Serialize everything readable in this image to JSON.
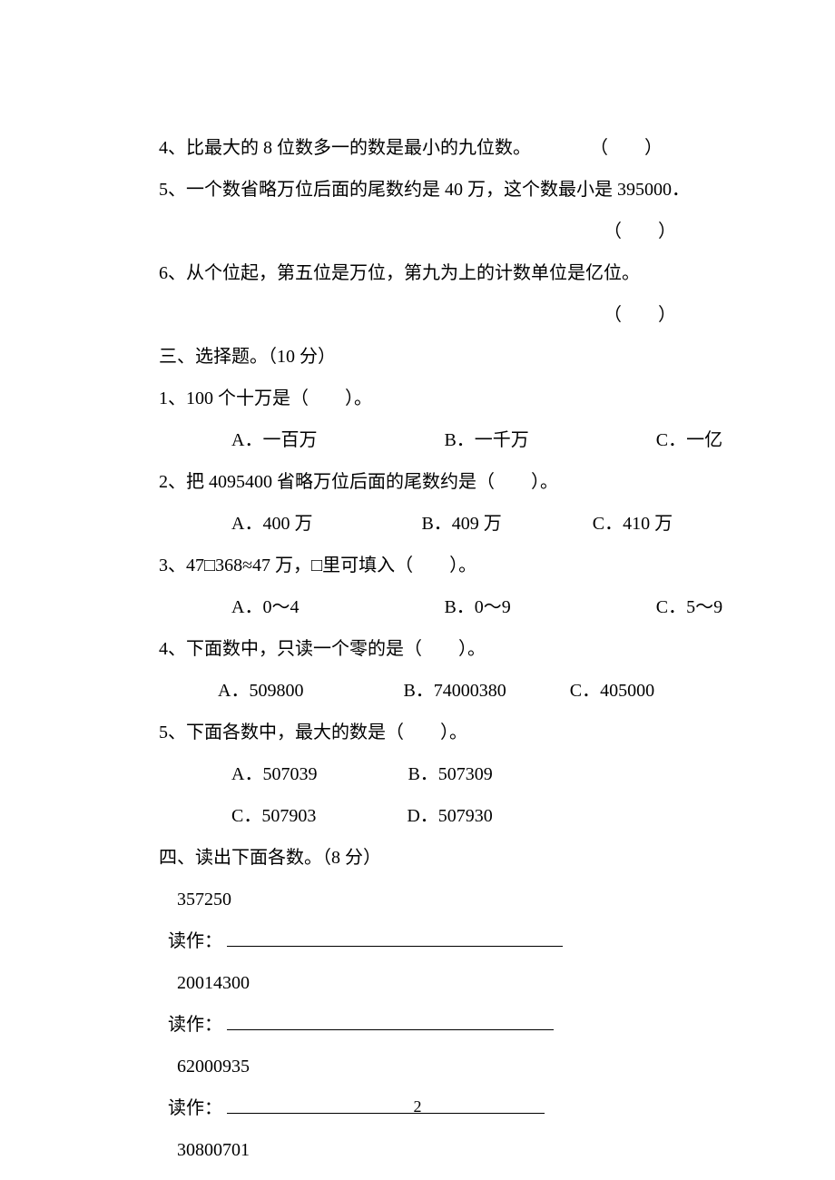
{
  "judge": {
    "q4": "4、比最大的 8 位数多一的数是最小的九位数。",
    "q4_paren": "（　　）",
    "q5": "5、一个数省略万位后面的尾数约是 40 万，这个数最小是 395000．",
    "q5_paren": "（　　）",
    "q6": "6、从个位起，第五位是万位，第九为上的计数单位是亿位。",
    "q6_paren": "（　　）"
  },
  "section3": {
    "title": "三、选择题。（10 分）",
    "q1": {
      "stem": "1、100 个十万是（　　）。",
      "A": "A．一百万",
      "B": "B．一千万",
      "C": "C．一亿"
    },
    "q2": {
      "stem": "2、把 4095400 省略万位后面的尾数约是（　　）。",
      "A": "A．400 万",
      "B": "B．409 万",
      "C": "C．410 万"
    },
    "q3": {
      "stem": "3、47□368≈47 万，□里可填入（　　）。",
      "A": "A．0～4",
      "B": "B．0～9",
      "C": "C．5～9"
    },
    "q4": {
      "stem": "4、下面数中，只读一个零的是（　　）。",
      "A": "A．509800",
      "B": "B．74000380",
      "C": "C．405000"
    },
    "q5": {
      "stem": "5、下面各数中，最大的数是（　　）。",
      "A": "A．507039",
      "B": "B．507309",
      "C": "C．507903",
      "D": "D．507930"
    }
  },
  "section4": {
    "title": "四、读出下面各数。（8 分）",
    "n1": "357250",
    "n2": "20014300",
    "n3": "62000935",
    "n4": "30800701",
    "read_label": "读作：",
    "underline_widths": [
      370,
      360,
      350
    ]
  },
  "page_number": "2"
}
